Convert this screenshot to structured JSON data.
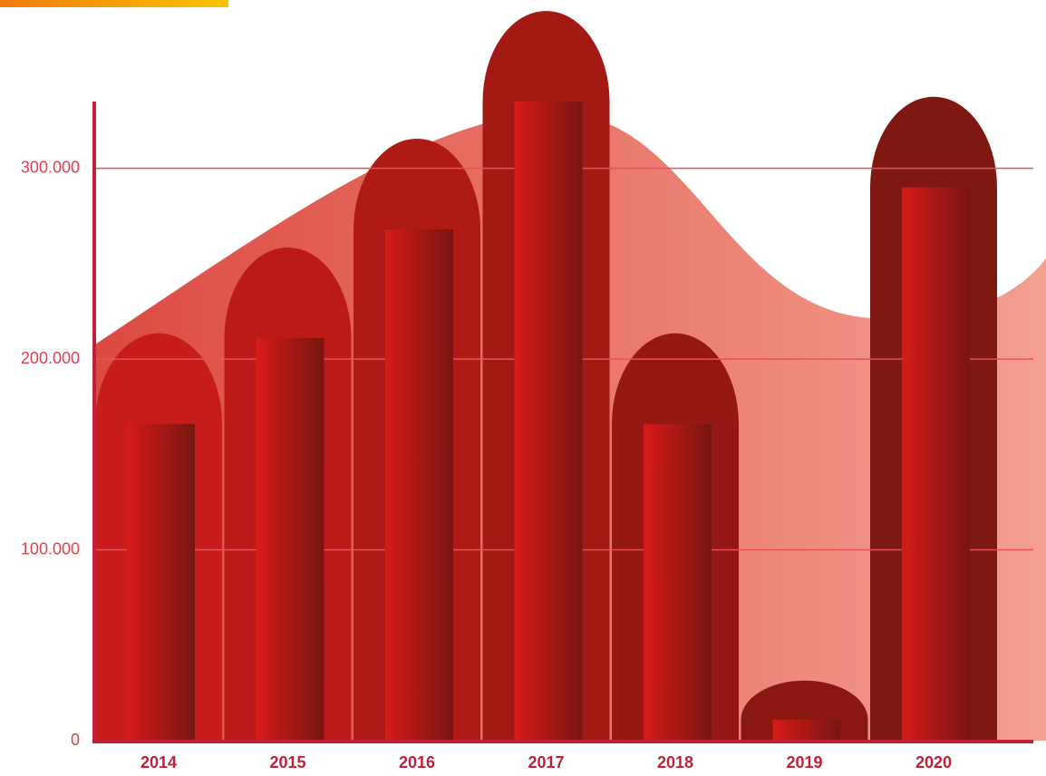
{
  "chart_data": {
    "type": "bar",
    "categories": [
      "2014",
      "2015",
      "2016",
      "2017",
      "2018",
      "2019",
      "2020"
    ],
    "values": [
      166000,
      211000,
      268000,
      335000,
      166000,
      11000,
      290000
    ],
    "ylim": [
      0,
      335000
    ],
    "yticks": [
      0,
      {
        "value": 100000,
        "label": "100.000"
      },
      {
        "value": 200000,
        "label": "200.000"
      },
      {
        "value": 300000,
        "label": "300.000"
      }
    ],
    "grid": true
  }
}
